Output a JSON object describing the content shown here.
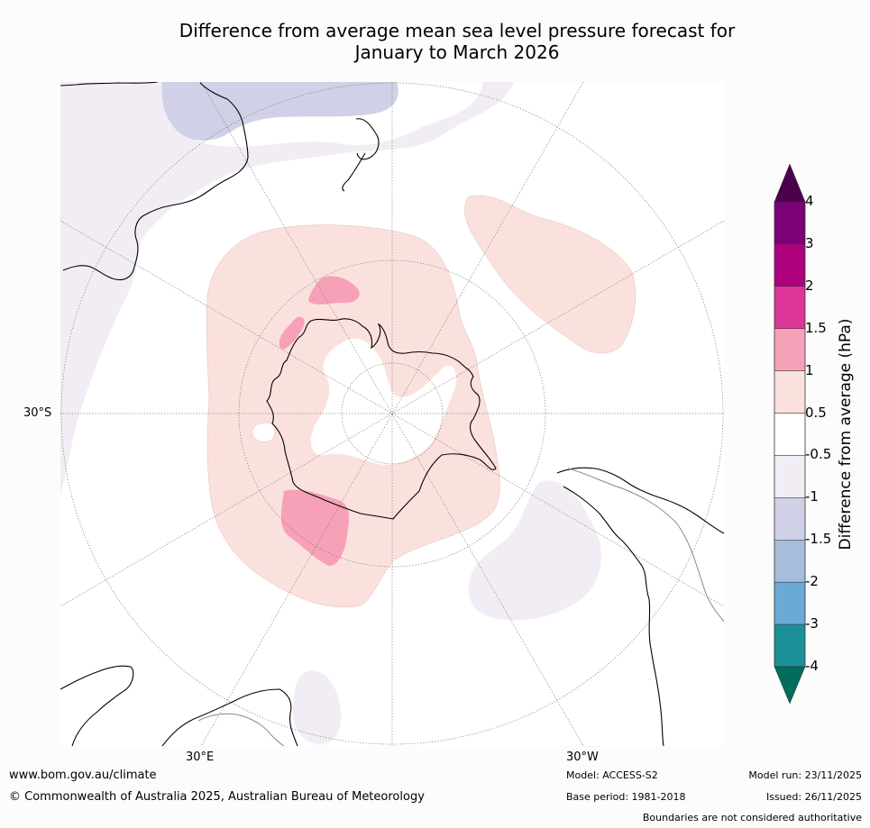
{
  "title": {
    "line1": "Difference from average mean sea level pressure forecast for",
    "line2": "January to March 2026"
  },
  "colorbar": {
    "axis_label": "Difference from average (hPa)",
    "ticks": [
      "4",
      "3",
      "2",
      "1.5",
      "1",
      "0.5",
      "-0.5",
      "-1",
      "-1.5",
      "-2",
      "-3",
      "-4"
    ],
    "bins": [
      {
        "range": "3 to 4",
        "color": "#7a0177"
      },
      {
        "range": "2 to 3",
        "color": "#ae017e"
      },
      {
        "range": "1.5 to 2",
        "color": "#dd3497"
      },
      {
        "range": "1 to 1.5",
        "color": "#f7a1b8"
      },
      {
        "range": "0.5 to 1",
        "color": "#fbe1dd"
      },
      {
        "range": "-0.5 to 0.5",
        "color": "#ffffff"
      },
      {
        "range": "-1 to -0.5",
        "color": "#f2edf4"
      },
      {
        "range": "-1.5 to -1",
        "color": "#d0d1e6"
      },
      {
        "range": "-2 to -1.5",
        "color": "#a6bddb"
      },
      {
        "range": "-3 to -2",
        "color": "#6aaad5"
      },
      {
        "range": "-4 to -3",
        "color": "#1c9098"
      }
    ],
    "extend_max_color": "#4d004b",
    "extend_min_color": "#016c59"
  },
  "map": {
    "projection": "south-polar-stereographic",
    "graticule_labels": {
      "left": "30°S",
      "bottom_left": "30°E",
      "bottom_right": "30°W"
    }
  },
  "footer": {
    "website": "www.bom.gov.au/climate",
    "copyright": "© Commonwealth of Australia 2025, Australian Bureau of Meteorology",
    "model": "Model: ACCESS-S2",
    "base_period": "Base period: 1981-2018",
    "model_run": "Model run: 23/11/2025",
    "issued": "Issued: 26/11/2025",
    "disclaimer": "Boundaries are not considered authoritative"
  }
}
